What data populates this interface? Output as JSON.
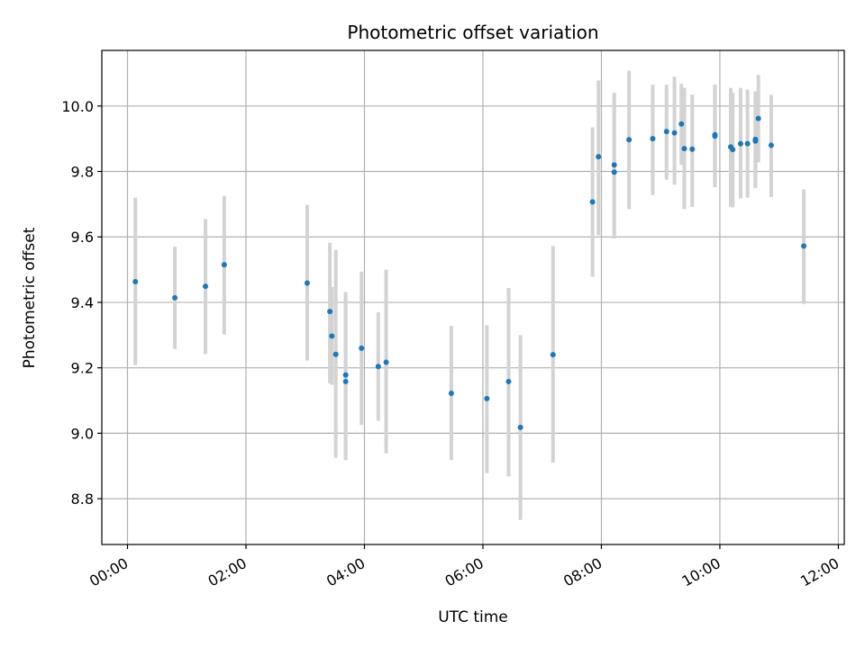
{
  "chart_data": {
    "type": "scatter",
    "title": "Photometric offset variation",
    "xlabel": "UTC time",
    "ylabel": "Photometric offset",
    "xlim": [
      "23:34",
      "12:06"
    ],
    "ylim": [
      8.66,
      10.17
    ],
    "grid": true,
    "x_ticks": [
      "00:00",
      "02:00",
      "04:00",
      "06:00",
      "08:00",
      "10:00",
      "12:00"
    ],
    "y_ticks": [
      8.8,
      9.0,
      9.2,
      9.4,
      9.6,
      9.8,
      10.0
    ],
    "point_color": "#1f77b4",
    "errorbar_color": "#d3d3d3",
    "points": [
      {
        "t": "00:08",
        "y": 9.463,
        "lo": 9.208,
        "hi": 9.72
      },
      {
        "t": "00:48",
        "y": 9.414,
        "lo": 9.258,
        "hi": 9.57
      },
      {
        "t": "01:19",
        "y": 9.449,
        "lo": 9.242,
        "hi": 9.655
      },
      {
        "t": "01:38",
        "y": 9.515,
        "lo": 9.302,
        "hi": 9.725
      },
      {
        "t": "03:02",
        "y": 9.459,
        "lo": 9.222,
        "hi": 9.698
      },
      {
        "t": "03:25",
        "y": 9.372,
        "lo": 9.153,
        "hi": 9.582
      },
      {
        "t": "03:27",
        "y": 9.297,
        "lo": 9.148,
        "hi": 9.447
      },
      {
        "t": "03:31",
        "y": 9.241,
        "lo": 8.925,
        "hi": 9.56
      },
      {
        "t": "03:41",
        "y": 9.178,
        "lo": 8.918,
        "hi": 9.432
      },
      {
        "t": "03:41",
        "y": 9.158,
        "lo": 8.918,
        "hi": 9.432
      },
      {
        "t": "03:57",
        "y": 9.26,
        "lo": 9.025,
        "hi": 9.494
      },
      {
        "t": "04:14",
        "y": 9.204,
        "lo": 9.038,
        "hi": 9.37
      },
      {
        "t": "04:22",
        "y": 9.217,
        "lo": 8.938,
        "hi": 9.5
      },
      {
        "t": "05:28",
        "y": 9.122,
        "lo": 8.918,
        "hi": 9.328
      },
      {
        "t": "06:04",
        "y": 9.106,
        "lo": 8.878,
        "hi": 9.33
      },
      {
        "t": "06:26",
        "y": 9.158,
        "lo": 8.868,
        "hi": 9.444
      },
      {
        "t": "06:38",
        "y": 9.018,
        "lo": 8.735,
        "hi": 9.3
      },
      {
        "t": "07:11",
        "y": 9.24,
        "lo": 8.91,
        "hi": 9.572
      },
      {
        "t": "07:51",
        "y": 9.707,
        "lo": 9.478,
        "hi": 9.935
      },
      {
        "t": "07:57",
        "y": 9.845,
        "lo": 9.605,
        "hi": 10.078
      },
      {
        "t": "08:13",
        "y": 9.82,
        "lo": 9.595,
        "hi": 10.04
      },
      {
        "t": "08:13",
        "y": 9.798,
        "lo": 9.595,
        "hi": 10.04
      },
      {
        "t": "08:28",
        "y": 9.897,
        "lo": 9.685,
        "hi": 10.108
      },
      {
        "t": "08:52",
        "y": 9.9,
        "lo": 9.728,
        "hi": 10.065
      },
      {
        "t": "09:06",
        "y": 9.922,
        "lo": 9.775,
        "hi": 10.065
      },
      {
        "t": "09:14",
        "y": 9.918,
        "lo": 9.76,
        "hi": 10.09
      },
      {
        "t": "09:21",
        "y": 9.945,
        "lo": 9.82,
        "hi": 10.068
      },
      {
        "t": "09:24",
        "y": 9.87,
        "lo": 9.685,
        "hi": 10.055
      },
      {
        "t": "09:32",
        "y": 9.868,
        "lo": 9.692,
        "hi": 10.035
      },
      {
        "t": "09:55",
        "y": 9.912,
        "lo": 9.752,
        "hi": 10.065
      },
      {
        "t": "09:55",
        "y": 9.908,
        "lo": 9.752,
        "hi": 10.065
      },
      {
        "t": "10:11",
        "y": 9.875,
        "lo": 9.692,
        "hi": 10.055
      },
      {
        "t": "10:13",
        "y": 9.867,
        "lo": 9.69,
        "hi": 10.04
      },
      {
        "t": "10:21",
        "y": 9.885,
        "lo": 9.718,
        "hi": 10.055
      },
      {
        "t": "10:28",
        "y": 9.885,
        "lo": 9.72,
        "hi": 10.05
      },
      {
        "t": "10:36",
        "y": 9.898,
        "lo": 9.75,
        "hi": 10.045
      },
      {
        "t": "10:36",
        "y": 9.893,
        "lo": 9.75,
        "hi": 10.045
      },
      {
        "t": "10:39",
        "y": 9.962,
        "lo": 9.828,
        "hi": 10.095
      },
      {
        "t": "10:52",
        "y": 9.88,
        "lo": 9.722,
        "hi": 10.035
      },
      {
        "t": "11:25",
        "y": 9.572,
        "lo": 9.395,
        "hi": 9.745
      }
    ]
  }
}
